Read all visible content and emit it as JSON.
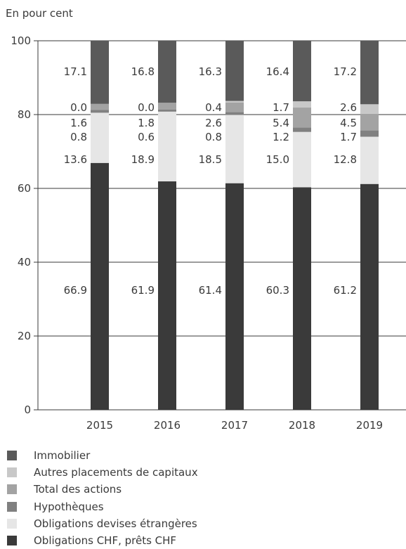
{
  "chart_data": {
    "type": "bar",
    "stacked": true,
    "ylabel": "En pour cent",
    "ylim": [
      0,
      100
    ],
    "yticks": [
      0,
      20,
      40,
      60,
      80,
      100
    ],
    "grid": true,
    "legend_position": "bottom",
    "categories": [
      "2015",
      "2016",
      "2017",
      "2018",
      "2019"
    ],
    "series": [
      {
        "name": "Obligations CHF, prêts CHF",
        "color": "#3a3a3a",
        "values": [
          66.9,
          61.9,
          61.4,
          60.3,
          61.2
        ]
      },
      {
        "name": "Obligations devises étrangères",
        "color": "#e6e6e6",
        "values": [
          13.6,
          18.9,
          18.5,
          15.0,
          12.8
        ]
      },
      {
        "name": "Hypothèques",
        "color": "#808080",
        "values": [
          0.8,
          0.6,
          0.8,
          1.2,
          1.7
        ]
      },
      {
        "name": "Total des actions",
        "color": "#a3a3a3",
        "values": [
          1.6,
          1.8,
          2.6,
          5.4,
          4.5
        ]
      },
      {
        "name": "Autres placements de capitaux",
        "color": "#c8c8c8",
        "values": [
          0.0,
          0.0,
          0.4,
          1.7,
          2.6
        ]
      },
      {
        "name": "Immobilier",
        "color": "#5a5a5a",
        "values": [
          17.1,
          16.8,
          16.3,
          16.4,
          17.2
        ]
      }
    ],
    "value_labels": [
      [
        "66.9",
        "13.6",
        "0.8",
        "1.6",
        "0.0",
        "17.1"
      ],
      [
        "61.9",
        "18.9",
        "0.6",
        "1.8",
        "0.0",
        "16.8"
      ],
      [
        "61.4",
        "18.5",
        "0.8",
        "2.6",
        "0.4",
        "16.3"
      ],
      [
        "60.3",
        "15.0",
        "1.2",
        "5.4",
        "1.7",
        "16.4"
      ],
      [
        "61.2",
        "12.8",
        "1.7",
        "4.5",
        "2.6",
        "17.2"
      ]
    ],
    "legend": [
      {
        "name": "Immobilier",
        "color": "#5a5a5a"
      },
      {
        "name": "Autres placements de capitaux",
        "color": "#c8c8c8"
      },
      {
        "name": "Total des actions",
        "color": "#a3a3a3"
      },
      {
        "name": "Hypothèques",
        "color": "#808080"
      },
      {
        "name": "Obligations devises étrangères",
        "color": "#e6e6e6"
      },
      {
        "name": "Obligations CHF, prêts CHF",
        "color": "#3a3a3a"
      }
    ]
  }
}
